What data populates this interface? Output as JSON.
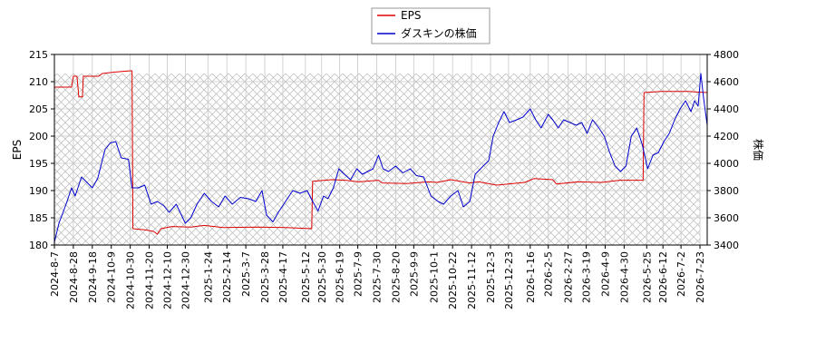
{
  "chart_data": {
    "type": "line",
    "legend": {
      "placement": "top-center",
      "entries": [
        "EPS",
        "ダスキンの株価"
      ]
    },
    "left_axis": {
      "label": "EPS",
      "ylim": [
        180,
        215
      ],
      "ticks": [
        180,
        185,
        190,
        195,
        200,
        205,
        210,
        215
      ]
    },
    "right_axis": {
      "label": "株価",
      "ylim": [
        3400,
        4800
      ],
      "ticks": [
        3400,
        3600,
        3800,
        4000,
        4200,
        4400,
        4600,
        4800
      ]
    },
    "x_axis": {
      "label": "",
      "range": [
        "2024-08-07",
        "2026-07-31"
      ],
      "ticks": [
        "2024-8-7",
        "2024-8-28",
        "2024-9-18",
        "2024-10-9",
        "2024-10-30",
        "2024-11-20",
        "2024-12-10",
        "2024-12-30",
        "2025-1-24",
        "2025-2-14",
        "2025-3-7",
        "2025-3-28",
        "2025-4-17",
        "2025-5-12",
        "2025-5-30",
        "2025-6-19",
        "2025-7-9",
        "2025-7-30",
        "2025-8-20",
        "2025-9-9",
        "2025-10-1",
        "2025-10-22",
        "2025-11-12",
        "2025-12-3",
        "2025-12-23",
        "2026-1-16",
        "2026-2-5",
        "2026-2-27",
        "2026-3-19",
        "2026-4-9",
        "2026-4-30",
        "2026-5-25",
        "2026-6-12",
        "2026-7-2",
        "2026-7-23"
      ]
    },
    "hatched_range": [
      "2024-08-07",
      "2026-07-23"
    ],
    "grid": true,
    "series": [
      {
        "name": "EPS",
        "axis": "left",
        "color": "#dd0000",
        "points": [
          [
            "2024-08-07",
            209
          ],
          [
            "2024-08-26",
            209
          ],
          [
            "2024-08-28",
            211
          ],
          [
            "2024-09-01",
            211
          ],
          [
            "2024-09-03",
            207.2
          ],
          [
            "2024-09-07",
            207.2
          ],
          [
            "2024-09-08",
            211
          ],
          [
            "2024-09-25",
            211
          ],
          [
            "2024-09-29",
            211.5
          ],
          [
            "2024-10-15",
            211.8
          ],
          [
            "2024-10-30",
            212
          ],
          [
            "2024-11-01",
            212
          ],
          [
            "2024-11-02",
            183
          ],
          [
            "2024-11-15",
            182.8
          ],
          [
            "2024-11-25",
            182.5
          ],
          [
            "2024-11-29",
            182
          ],
          [
            "2024-12-03",
            183
          ],
          [
            "2024-12-15",
            183.4
          ],
          [
            "2025-01-05",
            183.3
          ],
          [
            "2025-01-20",
            183.6
          ],
          [
            "2025-02-10",
            183.2
          ],
          [
            "2025-03-20",
            183.3
          ],
          [
            "2025-04-20",
            183.2
          ],
          [
            "2025-05-19",
            183
          ],
          [
            "2025-05-20",
            191.7
          ],
          [
            "2025-06-10",
            192
          ],
          [
            "2025-06-25",
            191.9
          ],
          [
            "2025-07-10",
            191.6
          ],
          [
            "2025-08-01",
            191.9
          ],
          [
            "2025-08-05",
            191.4
          ],
          [
            "2025-09-01",
            191.3
          ],
          [
            "2025-09-25",
            191.6
          ],
          [
            "2025-10-05",
            191.5
          ],
          [
            "2025-10-20",
            192
          ],
          [
            "2025-11-10",
            191.4
          ],
          [
            "2025-11-20",
            191.6
          ],
          [
            "2025-12-10",
            191
          ],
          [
            "2026-01-10",
            191.5
          ],
          [
            "2026-01-20",
            192.2
          ],
          [
            "2026-02-10",
            192
          ],
          [
            "2026-02-14",
            191.2
          ],
          [
            "2026-03-10",
            191.6
          ],
          [
            "2026-04-05",
            191.5
          ],
          [
            "2026-04-25",
            191.9
          ],
          [
            "2026-05-21",
            191.9
          ],
          [
            "2026-05-22",
            208
          ],
          [
            "2026-06-10",
            208.2
          ],
          [
            "2026-07-10",
            208.2
          ],
          [
            "2026-07-31",
            208
          ]
        ]
      },
      {
        "name": "ダスキンの株価",
        "axis": "right",
        "color": "#0000cc",
        "points": [
          [
            "2024-08-07",
            3420
          ],
          [
            "2024-08-12",
            3560
          ],
          [
            "2024-08-20",
            3700
          ],
          [
            "2024-08-26",
            3820
          ],
          [
            "2024-08-30",
            3760
          ],
          [
            "2024-09-06",
            3900
          ],
          [
            "2024-09-12",
            3860
          ],
          [
            "2024-09-18",
            3820
          ],
          [
            "2024-09-24",
            3890
          ],
          [
            "2024-10-02",
            4100
          ],
          [
            "2024-10-08",
            4150
          ],
          [
            "2024-10-14",
            4160
          ],
          [
            "2024-10-20",
            4040
          ],
          [
            "2024-10-28",
            4030
          ],
          [
            "2024-11-01",
            3820
          ],
          [
            "2024-11-08",
            3820
          ],
          [
            "2024-11-15",
            3840
          ],
          [
            "2024-11-22",
            3700
          ],
          [
            "2024-11-29",
            3720
          ],
          [
            "2024-12-06",
            3690
          ],
          [
            "2024-12-12",
            3640
          ],
          [
            "2024-12-20",
            3700
          ],
          [
            "2024-12-30",
            3560
          ],
          [
            "2025-01-05",
            3600
          ],
          [
            "2025-01-12",
            3700
          ],
          [
            "2025-01-20",
            3780
          ],
          [
            "2025-01-28",
            3720
          ],
          [
            "2025-02-05",
            3680
          ],
          [
            "2025-02-12",
            3760
          ],
          [
            "2025-02-20",
            3700
          ],
          [
            "2025-03-01",
            3750
          ],
          [
            "2025-03-10",
            3740
          ],
          [
            "2025-03-18",
            3720
          ],
          [
            "2025-03-25",
            3800
          ],
          [
            "2025-03-30",
            3620
          ],
          [
            "2025-04-06",
            3570
          ],
          [
            "2025-04-12",
            3640
          ],
          [
            "2025-04-20",
            3720
          ],
          [
            "2025-04-28",
            3800
          ],
          [
            "2025-05-06",
            3780
          ],
          [
            "2025-05-14",
            3800
          ],
          [
            "2025-05-20",
            3720
          ],
          [
            "2025-05-26",
            3650
          ],
          [
            "2025-06-01",
            3760
          ],
          [
            "2025-06-06",
            3740
          ],
          [
            "2025-06-12",
            3820
          ],
          [
            "2025-06-18",
            3960
          ],
          [
            "2025-06-24",
            3920
          ],
          [
            "2025-07-01",
            3880
          ],
          [
            "2025-07-08",
            3960
          ],
          [
            "2025-07-14",
            3920
          ],
          [
            "2025-07-20",
            3940
          ],
          [
            "2025-07-26",
            3960
          ],
          [
            "2025-08-01",
            4060
          ],
          [
            "2025-08-06",
            3960
          ],
          [
            "2025-08-12",
            3940
          ],
          [
            "2025-08-20",
            3980
          ],
          [
            "2025-08-28",
            3930
          ],
          [
            "2025-09-05",
            3960
          ],
          [
            "2025-09-12",
            3910
          ],
          [
            "2025-09-20",
            3900
          ],
          [
            "2025-09-28",
            3760
          ],
          [
            "2025-10-06",
            3720
          ],
          [
            "2025-10-12",
            3700
          ],
          [
            "2025-10-20",
            3760
          ],
          [
            "2025-10-28",
            3800
          ],
          [
            "2025-11-03",
            3680
          ],
          [
            "2025-11-10",
            3720
          ],
          [
            "2025-11-16",
            3920
          ],
          [
            "2025-11-22",
            3960
          ],
          [
            "2025-12-01",
            4020
          ],
          [
            "2025-12-06",
            4200
          ],
          [
            "2025-12-12",
            4300
          ],
          [
            "2025-12-18",
            4380
          ],
          [
            "2025-12-24",
            4300
          ],
          [
            "2026-01-01",
            4320
          ],
          [
            "2026-01-08",
            4340
          ],
          [
            "2026-01-16",
            4400
          ],
          [
            "2026-01-22",
            4320
          ],
          [
            "2026-01-28",
            4260
          ],
          [
            "2026-02-05",
            4360
          ],
          [
            "2026-02-10",
            4320
          ],
          [
            "2026-02-16",
            4260
          ],
          [
            "2026-02-22",
            4320
          ],
          [
            "2026-03-01",
            4300
          ],
          [
            "2026-03-08",
            4280
          ],
          [
            "2026-03-14",
            4300
          ],
          [
            "2026-03-20",
            4220
          ],
          [
            "2026-03-26",
            4320
          ],
          [
            "2026-04-02",
            4260
          ],
          [
            "2026-04-08",
            4200
          ],
          [
            "2026-04-14",
            4080
          ],
          [
            "2026-04-20",
            3980
          ],
          [
            "2026-04-26",
            3940
          ],
          [
            "2026-05-02",
            3980
          ],
          [
            "2026-05-08",
            4200
          ],
          [
            "2026-05-14",
            4260
          ],
          [
            "2026-05-20",
            4140
          ],
          [
            "2026-05-26",
            3960
          ],
          [
            "2026-06-01",
            4060
          ],
          [
            "2026-06-07",
            4080
          ],
          [
            "2026-06-13",
            4160
          ],
          [
            "2026-06-19",
            4220
          ],
          [
            "2026-06-25",
            4320
          ],
          [
            "2026-07-01",
            4400
          ],
          [
            "2026-07-07",
            4460
          ],
          [
            "2026-07-13",
            4380
          ],
          [
            "2026-07-17",
            4460
          ],
          [
            "2026-07-21",
            4420
          ],
          [
            "2026-07-24",
            4660
          ],
          [
            "2026-07-27",
            4480
          ],
          [
            "2026-07-31",
            4280
          ]
        ]
      }
    ]
  }
}
